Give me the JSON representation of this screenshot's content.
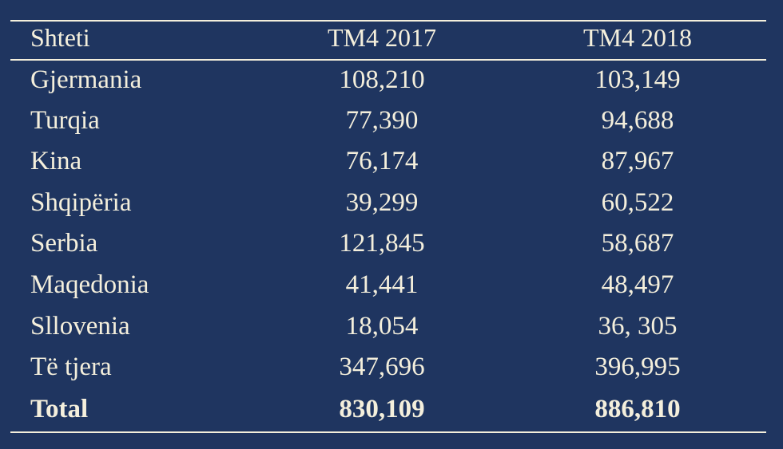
{
  "table": {
    "headers": [
      "Shteti",
      "TM4 2017",
      "TM4 2018"
    ],
    "rows": [
      [
        "Gjermania",
        "108,210",
        "103,149"
      ],
      [
        "Turqia",
        "77,390",
        "94,688"
      ],
      [
        "Kina",
        "76,174",
        "87,967"
      ],
      [
        "Shqipëria",
        "39,299",
        "60,522"
      ],
      [
        "Serbia",
        "121,845",
        "58,687"
      ],
      [
        "Maqedonia",
        "41,441",
        "48,497"
      ],
      [
        "Sllovenia",
        "18,054",
        "36, 305"
      ],
      [
        "Të tjera",
        "347,696",
        "396,995"
      ]
    ],
    "total": [
      "Total",
      "830,109",
      "886,810"
    ]
  }
}
